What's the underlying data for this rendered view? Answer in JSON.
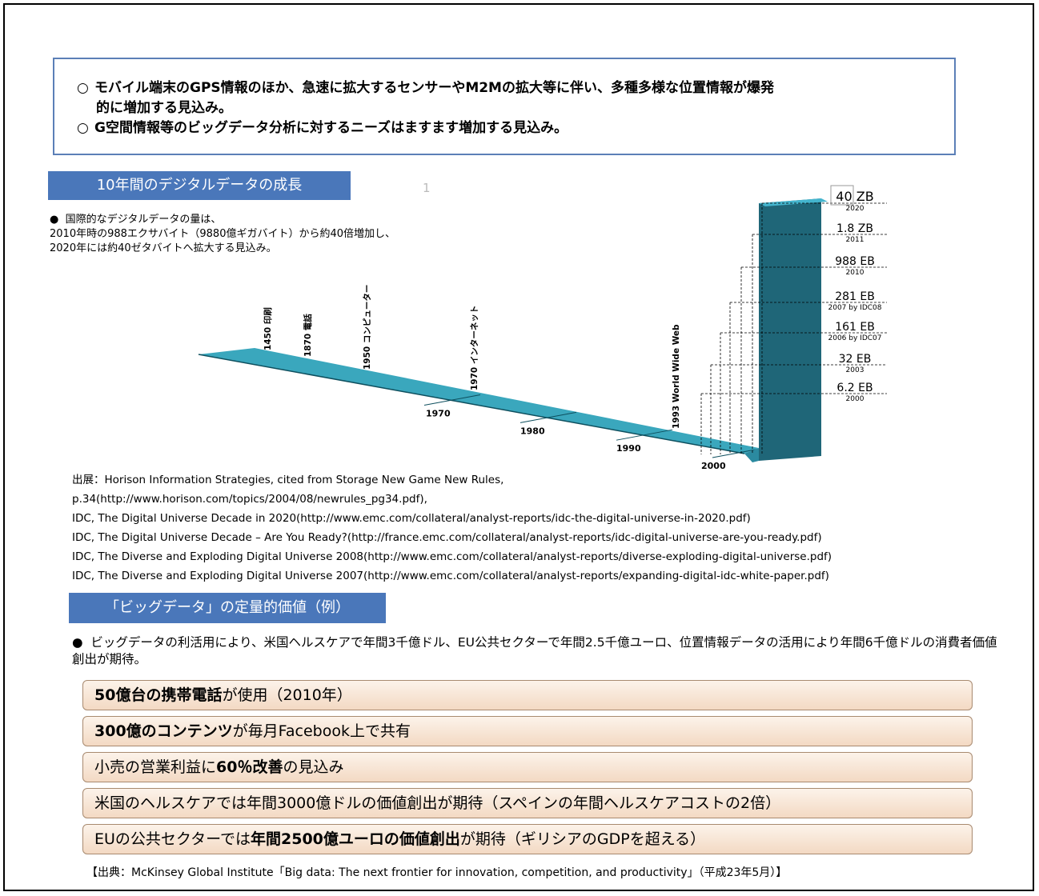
{
  "summary": {
    "mark": "○",
    "line1": "モバイル端末のGPS情報のほか、急速に拡大するセンサーやM2Mの拡大等に伴い、多種多様な位置情報が爆発",
    "line1_cont": "的に増加する見込み。",
    "line2": "G空間情報等のビッグデータ分析に対するニーズはますます増加する見込み。"
  },
  "section1": {
    "header": "10年間のデジタルデータの成長",
    "page_marker": "1",
    "bullet": "●",
    "text1": "国際的なデジタルデータの量は、",
    "text2": "2010年時の988エクサバイト（9880億ギガバイト）から約40倍増加し、",
    "text3": "2020年には約40ゼタバイトへ拡大する見込み。"
  },
  "chart_data": {
    "type": "bar",
    "title": "",
    "milestones": [
      {
        "label": "1450 印刷"
      },
      {
        "label": "1870 電話"
      },
      {
        "label": "1950 コンピューター"
      },
      {
        "label": "1970 インターネット"
      },
      {
        "label": "1993 World Wide Web"
      }
    ],
    "axis_ticks": [
      "1970",
      "1980",
      "1990",
      "2000"
    ],
    "categories": [
      "2000",
      "2003",
      "2006 by IDC07",
      "2007 by IDC08",
      "2010",
      "2011",
      "2020"
    ],
    "value_labels": [
      "6.2 EB",
      "32 EB",
      "161 EB",
      "281 EB",
      "988 EB",
      "1.8 ZB",
      "40 ZB"
    ],
    "values_EB": [
      6.2,
      32,
      161,
      281,
      988,
      1800,
      40000
    ],
    "colors": {
      "bar_top": "#44b5ce",
      "bar_face": "#1f6678",
      "timeline": "#3aa7bd"
    }
  },
  "sources": {
    "line1": "出展：Horison Information Strategies, cited from Storage New Game New Rules,",
    "line2": "p.34(http://www.horison.com/topics/2004/08/newrules_pg34.pdf),",
    "line3": "IDC, The Digital Universe Decade in 2020(http://www.emc.com/collateral/analyst-reports/idc-the-digital-universe-in-2020.pdf)",
    "line4": "IDC, The Digital Universe Decade – Are You Ready?(http://france.emc.com/collateral/analyst-reports/idc-digital-universe-are-you-ready.pdf)",
    "line5": "IDC, The Diverse and Exploding Digital Universe 2008(http://www.emc.com/collateral/analyst-reports/diverse-exploding-digital-universe.pdf)",
    "line6": "IDC, The Diverse and Exploding Digital Universe 2007(http://www.emc.com/collateral/analyst-reports/expanding-digital-idc-white-paper.pdf)"
  },
  "section2": {
    "header": "「ビッグデータ」の定量的価値（例）",
    "bullet": "●",
    "text": "ビッグデータの利活用により、米国ヘルスケアで年間3千億ドル、EU公共セクターで年間2.5千億ユーロ、位置情報データの活用により年間6千億ドルの消費者価値創出が期待。"
  },
  "facts": [
    {
      "bold": "50億台の携帯電話",
      "rest": "が使用（2010年）"
    },
    {
      "bold": "300億のコンテンツ",
      "rest": "が毎月Facebook上で共有"
    },
    {
      "pre": "小売の営業利益に",
      "bold": "60％改善",
      "rest": "の見込み"
    },
    {
      "pre": "米国のヘルスケアでは年間3000億ドルの価値創出が期待（スペインの年間ヘルスケアコストの2倍）"
    },
    {
      "pre": "EUの公共セクターでは",
      "bold": "年間2500億ユーロの価値創出",
      "rest": "が期待（ギリシアのGDPを超える）"
    }
  ],
  "footer": {
    "source": "【出典：McKinsey Global Institute「Big data: The next frontier for innovation, competition, and productivity」（平成23年5月）】"
  }
}
